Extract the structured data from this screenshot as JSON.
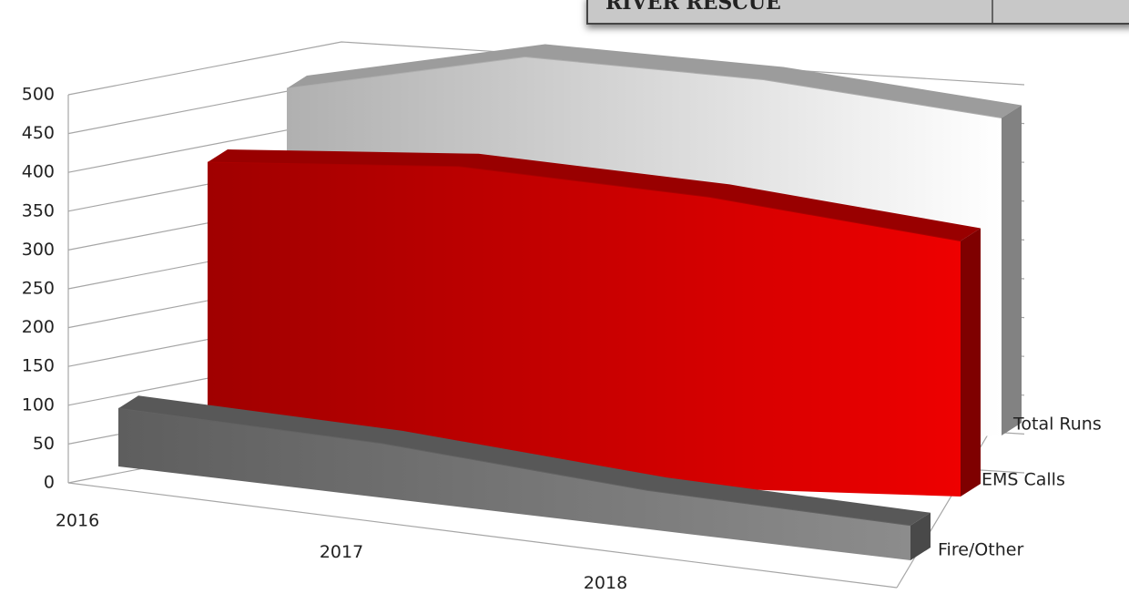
{
  "overlay": {
    "text": "RIVER RESCUE"
  },
  "chart_data": {
    "type": "area3d",
    "categories": [
      "2016",
      "2017",
      "2018",
      null
    ],
    "series": [
      {
        "name": "Fire/Other",
        "color": "#7a7a7a",
        "values": [
          75,
          70,
          50,
          45
        ]
      },
      {
        "name": "EMS Calls",
        "color": "#d40000",
        "values": [
          400,
          405,
          376,
          330
        ]
      },
      {
        "name": "Total Runs",
        "color": "#d9d9d9",
        "values": [
          480,
          510,
          470,
          410
        ]
      }
    ],
    "ylim": [
      0,
      500
    ],
    "yticks": [
      0,
      50,
      100,
      150,
      200,
      250,
      300,
      350,
      400,
      450,
      500
    ],
    "grid": true
  }
}
